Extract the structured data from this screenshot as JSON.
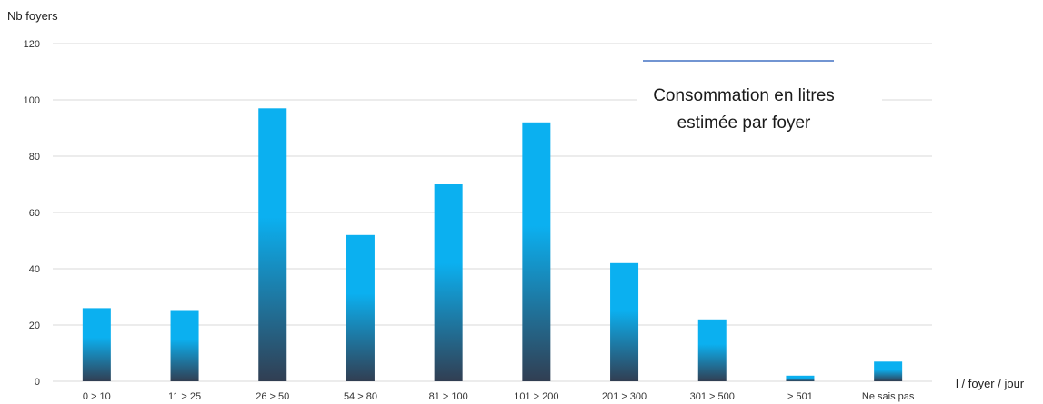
{
  "chart_data": {
    "type": "bar",
    "ylabel": "Nb foyers",
    "xlabel": "l / foyer / jour",
    "categories": [
      "0 > 10",
      "11 > 25",
      "26 > 50",
      "54 > 80",
      "81 > 100",
      "101 > 200",
      "201 > 300",
      "301 > 500",
      "> 501",
      "Ne sais pas"
    ],
    "series": [
      {
        "name": "Consommation en litres estimée par foyer",
        "values": [
          26,
          25,
          97,
          52,
          70,
          92,
          42,
          22,
          2,
          7
        ]
      }
    ],
    "ylim": [
      0,
      120
    ],
    "yticks": [
      0,
      20,
      40,
      60,
      80,
      100,
      120
    ],
    "grid": true,
    "legend_position": "top-right",
    "legend_lines": [
      "Consommation en litres",
      "estimée par foyer"
    ],
    "colors": {
      "bar_top": "#0bb0f0",
      "bar_bottom": "#313e52",
      "grid": "#d9d9d9",
      "legend_line": "#4472c4"
    }
  }
}
